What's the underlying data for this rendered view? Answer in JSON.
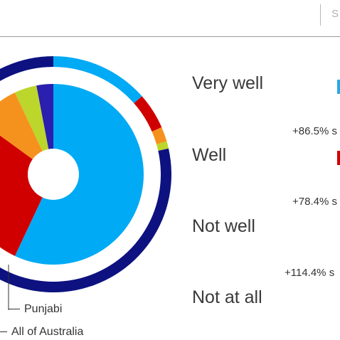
{
  "search": {
    "fragment": "S"
  },
  "chart_data": {
    "type": "pie",
    "inner_ring": {
      "name": "Punjabi",
      "slices": [
        {
          "value": 57,
          "color": "#00aaf5"
        },
        {
          "value": 28,
          "color": "#d00000"
        },
        {
          "value": 8,
          "color": "#f5921e"
        },
        {
          "value": 4,
          "color": "#bcd62c"
        },
        {
          "value": 3,
          "color": "#2a1fae"
        }
      ]
    },
    "outer_ring": {
      "name": "All of Australia",
      "slices": [
        {
          "value": 13.5,
          "color": "#00aaf5"
        },
        {
          "value": 5,
          "color": "#d00000"
        },
        {
          "value": 2,
          "color": "#f5921e"
        },
        {
          "value": 1,
          "color": "#bcd62c"
        },
        {
          "value": 78.5,
          "color": "#0d1280"
        }
      ]
    }
  },
  "legend": {
    "punjabi": "Punjabi",
    "australia": "All of Australia"
  },
  "categories": [
    {
      "label": "Very well",
      "change": "+86.5% s",
      "accent": "#29a9e1"
    },
    {
      "label": "Well",
      "change": "+78.4% s",
      "accent": "#d00000"
    },
    {
      "label": "Not well",
      "change": "+114.4% s",
      "accent": ""
    },
    {
      "label": "Not at all",
      "change": "",
      "accent": ""
    }
  ]
}
